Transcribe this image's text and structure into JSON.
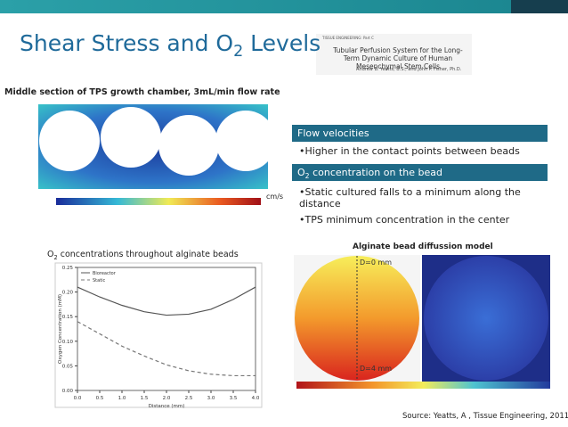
{
  "slide": {
    "title": {
      "main": "Shear Stress and O",
      "sub": "2",
      "rest": " Levels"
    },
    "paper": {
      "journal": "TISSUE ENGINEERING: Part C",
      "title": "Tubular Perfusion System for the Long-Term Dynamic Culture of Human Mesenchymal Stem Cells",
      "authors": "Andrew B. Yeatts, B.S., and John P. Fisher, Ph.D."
    },
    "flow_caption": "Middle section of TPS growth chamber, 3mL/min flow rate",
    "flow_unit": "cm/s",
    "boxes": [
      {
        "header": "Flow velocities",
        "bullets": [
          "Higher in the contact points between beads"
        ]
      },
      {
        "header_main": "O",
        "header_sub": "2",
        "header_rest": " concentration on the bead",
        "bullets": [
          "Static cultured falls to a minimum along the distance",
          "TPS minimum concentration in the center"
        ]
      }
    ],
    "diffusion_caption": "Alginate bead diffussion model",
    "diffusion_top": "D=0 mm",
    "diffusion_bottom": "D=4 mm",
    "source": "Source: Yeatts, A , Tissue Engineering, 2011"
  },
  "chart_data": {
    "type": "line",
    "title_main": "O",
    "title_sub": "2",
    "title_rest": " concentrations throughout alginate beads",
    "x_label": "Distance (mm)",
    "y_label": "Oxygen Concentration (mM)",
    "x": [
      0,
      0.5,
      1,
      1.5,
      2,
      2.5,
      3,
      3.5,
      4
    ],
    "series": [
      {
        "name": "Bioreactor",
        "color": "#555555",
        "dash": "none",
        "values": [
          0.21,
          0.19,
          0.173,
          0.16,
          0.153,
          0.155,
          0.165,
          0.185,
          0.21
        ]
      },
      {
        "name": "Static",
        "color": "#777777",
        "dash": "4 3",
        "values": [
          0.14,
          0.115,
          0.09,
          0.07,
          0.052,
          0.04,
          0.033,
          0.03,
          0.03
        ]
      }
    ],
    "xlim": [
      0,
      4
    ],
    "ylim": [
      0,
      0.25
    ],
    "xticks": [
      {
        "value": 0,
        "label": "0.0"
      },
      0.5,
      {
        "value": 1,
        "label": "1.0"
      },
      1.5,
      {
        "value": 2,
        "label": "2.0"
      },
      2.5,
      {
        "value": 3,
        "label": "3.0"
      },
      3.5,
      {
        "value": 4,
        "label": "4.0"
      }
    ],
    "yticks": [
      {
        "value": 0,
        "label": "0.00"
      },
      0.05,
      {
        "value": 0.1,
        "label": "0.10"
      },
      0.15,
      {
        "value": 0.2,
        "label": "0.20"
      },
      0.25
    ]
  }
}
